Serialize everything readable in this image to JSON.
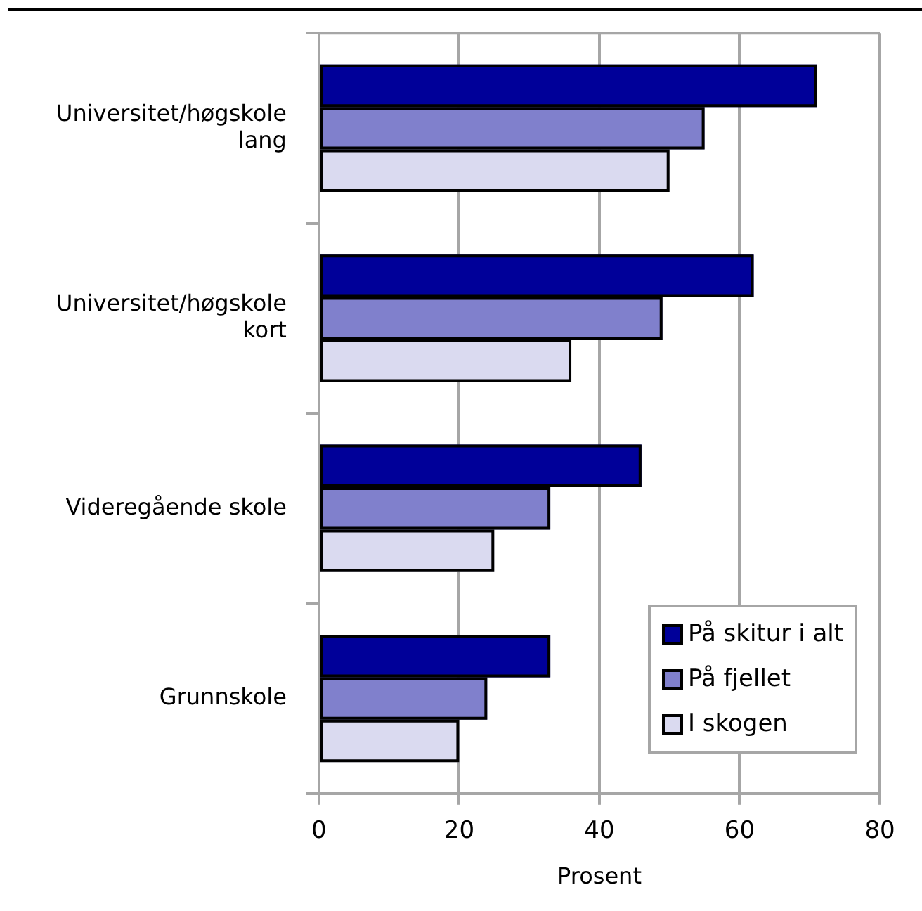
{
  "chart_data": {
    "type": "bar",
    "orientation": "horizontal",
    "categories": [
      "Universitet/høgskole lang",
      "Universitet/høgskole kort",
      "Videregående skole",
      "Grunnskole"
    ],
    "series": [
      {
        "name": "På skitur i alt",
        "color": "#000099",
        "values": [
          71,
          62,
          46,
          33
        ]
      },
      {
        "name": "På fjellet",
        "color": "#8080cc",
        "values": [
          55,
          49,
          33,
          24
        ]
      },
      {
        "name": "I skogen",
        "color": "#dadaf0",
        "values": [
          50,
          36,
          25,
          20
        ]
      }
    ],
    "xlabel": "Prosent",
    "xlim": [
      0,
      80
    ],
    "xticks": [
      0,
      20,
      40,
      60,
      80
    ],
    "grid": "x",
    "legend": "bottom right"
  }
}
